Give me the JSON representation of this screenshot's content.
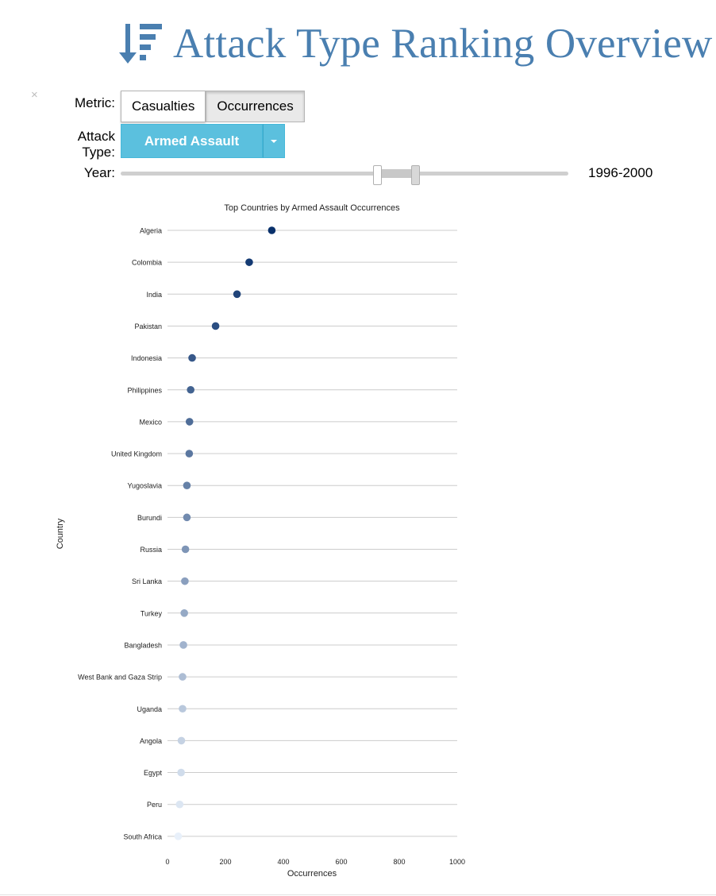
{
  "header": {
    "title": "Attack Type Ranking Overview",
    "icon": "sort-amount-down-icon",
    "color": "#4a7fb0"
  },
  "controls": {
    "close_symbol": "×",
    "metric_label": "Metric:",
    "metric_options": [
      "Casualties",
      "Occurrences"
    ],
    "metric_selected": "Occurrences",
    "attack_type_label_line1": "Attack",
    "attack_type_label_line2": "Type:",
    "attack_type_value": "Armed Assault",
    "year_label": "Year:",
    "year_range_text": "1996-2000",
    "year_range": [
      1996,
      2000
    ],
    "dropdown_color": "#5bc0de"
  },
  "chart_data": {
    "type": "scatter",
    "title": "Top Countries by Armed Assault Occurrences",
    "xlabel": "Occurrences",
    "ylabel": "Country",
    "xlim": [
      0,
      1000
    ],
    "xticks": [
      0,
      200,
      400,
      600,
      800,
      1000
    ],
    "grid": true,
    "color_scale": [
      "#08306b",
      "#e8f0fa"
    ],
    "categories": [
      "Algeria",
      "Colombia",
      "India",
      "Pakistan",
      "Indonesia",
      "Philippines",
      "Mexico",
      "United Kingdom",
      "Yugoslavia",
      "Burundi",
      "Russia",
      "Sri Lanka",
      "Turkey",
      "Bangladesh",
      "West Bank and Gaza Strip",
      "Uganda",
      "Angola",
      "Egypt",
      "Peru",
      "South Africa"
    ],
    "values": [
      360,
      282,
      240,
      166,
      85,
      80,
      76,
      75,
      67,
      67,
      62,
      60,
      58,
      55,
      52,
      52,
      48,
      47,
      42,
      37
    ]
  }
}
